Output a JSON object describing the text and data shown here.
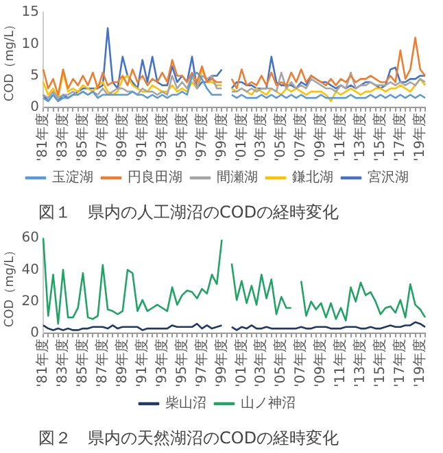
{
  "chart_data": [
    {
      "type": "line",
      "title": "図１　県内の人工湖沼のCODの経時変化",
      "ylabel": "COD（mg/L）",
      "ylim": [
        0,
        15
      ],
      "yticks": [
        0,
        5,
        10,
        15
      ],
      "grid": false,
      "legend": "bottom",
      "marker": "none",
      "line_style": "solid",
      "categories": [
        "'81年度",
        null,
        null,
        null,
        "'83年度",
        null,
        null,
        null,
        "'85年度",
        null,
        null,
        null,
        "'87年度",
        null,
        null,
        null,
        "'89年度",
        null,
        null,
        null,
        "'91年度",
        null,
        null,
        null,
        "'93年度",
        null,
        null,
        null,
        "'95年度",
        null,
        null,
        null,
        "'97年度",
        null,
        null,
        null,
        "'99年度",
        null,
        null,
        null,
        "'01年度",
        null,
        null,
        null,
        "'03年度",
        null,
        null,
        null,
        "'05年度",
        null,
        null,
        null,
        "'07年度",
        null,
        null,
        null,
        "'09年度",
        null,
        null,
        null,
        "'11年度",
        null,
        null,
        null,
        "'13年度",
        null,
        null,
        null,
        "'15年度",
        null,
        null,
        null,
        "'17年度",
        null,
        null,
        null,
        "'19年度",
        null
      ],
      "series": [
        {
          "name": "玉淀湖",
          "color": "#5b9bd5",
          "values": [
            1.5,
            1,
            2,
            1,
            1.5,
            1.5,
            2,
            2,
            2.5,
            2,
            2.5,
            1.5,
            2,
            2,
            2,
            2,
            2,
            2,
            2.5,
            2,
            2,
            1.5,
            2,
            1.5,
            2,
            1.5,
            2,
            2,
            2.5,
            2,
            5,
            5.5,
            4.5,
            3,
            2,
            2,
            2,
            null,
            2,
            1.5,
            2,
            1.5,
            1.5,
            1.5,
            2,
            1.5,
            2,
            1.5,
            2,
            1.5,
            2,
            1.5,
            2,
            1.5,
            1.5,
            1.5,
            2,
            1.5,
            1.5,
            1.5,
            1.5,
            1.5,
            2,
            1.5,
            1.5,
            1.5,
            2,
            1.5,
            2,
            1.5,
            2,
            1.5,
            2,
            1.5,
            2,
            1.5,
            2,
            1.5
          ]
        },
        {
          "name": "円良田湖",
          "color": "#ed7d31",
          "values": [
            6,
            3,
            4.5,
            2,
            6,
            3,
            4.5,
            3.5,
            5,
            3.5,
            5.5,
            3,
            5.5,
            3.5,
            4,
            4,
            5,
            3.5,
            6,
            4,
            5,
            3.5,
            4.5,
            4,
            5.5,
            4,
            7.5,
            5,
            5,
            4,
            5.5,
            4,
            6.5,
            4,
            4.5,
            4,
            4,
            null,
            4.5,
            3,
            6,
            3.5,
            4,
            3.5,
            5,
            3.5,
            5.5,
            3.5,
            4,
            3.5,
            5.5,
            4,
            6,
            4,
            5,
            4.5,
            4,
            3.5,
            4.5,
            3.5,
            4.5,
            4,
            5,
            4,
            4.5,
            4.5,
            5,
            4.5,
            4,
            4,
            5,
            4,
            9,
            4.5,
            6,
            11,
            6,
            5
          ]
        },
        {
          "name": "間瀬湖",
          "color": "#a5a5a5",
          "values": [
            2,
            1.5,
            2.5,
            1.5,
            2,
            2,
            2.5,
            2,
            2.5,
            2,
            2.5,
            2,
            3,
            2,
            2.5,
            3,
            3,
            2.5,
            2.5,
            2,
            3,
            2.5,
            2.5,
            2,
            2.5,
            2,
            5,
            3,
            4,
            3,
            5,
            3,
            5,
            4.5,
            5,
            3,
            3,
            null,
            2.5,
            2.5,
            3,
            2.5,
            3,
            2.5,
            3,
            3,
            3,
            2.5,
            5.5,
            3,
            4,
            3,
            3.5,
            3,
            4.5,
            4,
            3.5,
            3,
            3,
            2.5,
            3.5,
            3,
            5.5,
            3,
            3.5,
            3.5,
            4,
            3.5,
            3.5,
            3.5,
            4,
            3.5,
            4,
            3.5,
            4,
            3.5,
            4.5,
            4
          ]
        },
        {
          "name": "鎌北湖",
          "color": "#ffc000",
          "values": [
            4,
            2,
            3,
            1.5,
            5.5,
            2.5,
            3,
            2.5,
            3.5,
            3,
            2.5,
            3.5,
            4,
            2.5,
            2,
            2.5,
            4.5,
            5,
            3.5,
            3,
            2.5,
            2.5,
            3.5,
            3,
            2.5,
            2.5,
            3.5,
            2.5,
            3,
            2.5,
            4,
            3,
            6,
            4,
            4,
            3.5,
            3.5,
            null,
            3,
            2.5,
            3,
            2.5,
            2,
            3,
            2.5,
            2,
            3,
            2.5,
            2,
            3,
            2.5,
            3,
            2.5,
            2,
            2.5,
            2.5,
            2.5,
            2,
            1,
            2.5,
            2,
            2.5,
            3,
            2.5,
            2,
            2.5,
            2.5,
            3,
            3,
            2.5,
            3,
            3,
            3.5,
            3,
            2.5,
            3.5,
            4.5,
            3.5
          ]
        },
        {
          "name": "宮沢湖",
          "color": "#4472c4",
          "values": [
            2,
            1,
            2,
            1,
            2,
            1.5,
            2,
            2.5,
            3,
            3,
            3,
            3,
            3.5,
            12.5,
            4,
            3,
            8,
            5,
            4,
            3,
            7.5,
            4,
            8,
            4,
            3.5,
            3.5,
            6.5,
            4,
            5,
            4,
            8,
            3,
            4,
            4,
            5,
            5,
            6,
            null,
            3,
            4,
            4,
            3.5,
            3.5,
            3,
            3,
            3,
            8,
            4,
            3.5,
            3.5,
            3.5,
            3,
            4,
            3.5,
            5,
            4.5,
            4,
            4,
            3.5,
            3,
            3.5,
            3,
            3.5,
            3,
            3.5,
            4,
            4,
            3.5,
            3,
            3.5,
            6,
            6.3,
            4,
            4,
            4.5,
            4.5,
            5,
            5
          ]
        }
      ]
    },
    {
      "type": "line",
      "title": "図２　県内の天然湖沼のCODの経時変化",
      "ylabel": "COD（mg/L）",
      "ylim": [
        0,
        60
      ],
      "yticks": [
        0,
        20,
        40,
        60
      ],
      "grid": false,
      "legend": "bottom",
      "marker": "none",
      "line_style": "solid",
      "categories": [
        "'81年度",
        null,
        null,
        null,
        "'83年度",
        null,
        null,
        null,
        "'85年度",
        null,
        null,
        null,
        "'87年度",
        null,
        null,
        null,
        "'89年度",
        null,
        null,
        null,
        "'91年度",
        null,
        null,
        null,
        "'93年度",
        null,
        null,
        null,
        "'95年度",
        null,
        null,
        null,
        "'97年度",
        null,
        null,
        null,
        "'99年度",
        null,
        null,
        null,
        "'01年度",
        null,
        null,
        null,
        "'03年度",
        null,
        null,
        null,
        "'05年度",
        null,
        null,
        null,
        "'07年度",
        null,
        null,
        null,
        "'09年度",
        null,
        null,
        null,
        "'11年度",
        null,
        null,
        null,
        "'13年度",
        null,
        null,
        null,
        "'15年度",
        null,
        null,
        null,
        "'17年度",
        null,
        null,
        null,
        "'19年度",
        null
      ],
      "series": [
        {
          "name": "柴山沼",
          "color": "#1f3864",
          "values": [
            5,
            3,
            2,
            3,
            2,
            3,
            2,
            2,
            3,
            3,
            4,
            4,
            4,
            3,
            5,
            3,
            4,
            4,
            4,
            4,
            2,
            3,
            3,
            3,
            3,
            3,
            5,
            4,
            4,
            4,
            4,
            6,
            3,
            5,
            3,
            4,
            5,
            null,
            4,
            2,
            4,
            3,
            5,
            3,
            3,
            4,
            3,
            3,
            3,
            3,
            3,
            3,
            4,
            3,
            3,
            4,
            4,
            4,
            3,
            3,
            3,
            4,
            4,
            4,
            3,
            3,
            4,
            3,
            3,
            4,
            5,
            4,
            4,
            5,
            5,
            7,
            6,
            4
          ]
        },
        {
          "name": "山ノ神沼",
          "color": "#21a366",
          "values": [
            60,
            11,
            37,
            6,
            40,
            10,
            10,
            16,
            38,
            10,
            9,
            11,
            43,
            15,
            14,
            12,
            14,
            40,
            38,
            14,
            21,
            14,
            16,
            18,
            16,
            14,
            29,
            18,
            24,
            27,
            26,
            22,
            28,
            25,
            37,
            31,
            59,
            null,
            44,
            21,
            33,
            19,
            30,
            18,
            37,
            22,
            34,
            12,
            23,
            16,
            16,
            null,
            33,
            11,
            20,
            15,
            19,
            10,
            19,
            9,
            16,
            8,
            29,
            20,
            32,
            24,
            26,
            20,
            12,
            16,
            17,
            13,
            21,
            10,
            31,
            18,
            15,
            10
          ]
        }
      ]
    }
  ]
}
